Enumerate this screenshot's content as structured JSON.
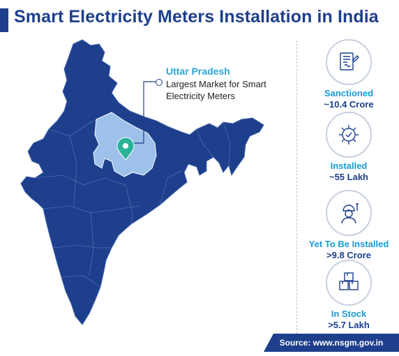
{
  "title": "Smart Electricity Meters Installation in India",
  "callout": {
    "state": "Uttar Pradesh",
    "description": "Largest Market for Smart Electricity Meters"
  },
  "stats": [
    {
      "label": "Sanctioned",
      "value": "~10.4 Crore",
      "icon": "contract-document-icon"
    },
    {
      "label": "Installed",
      "value": "~55 Lakh",
      "icon": "gear-check-icon"
    },
    {
      "label": "Yet To Be Installed",
      "value": ">9.8 Crore",
      "icon": "technician-icon"
    },
    {
      "label": "In Stock",
      "value": ">5.7 Lakh",
      "icon": "stacked-boxes-icon"
    }
  ],
  "source": "Source: www.nsgm.gov.in",
  "colors": {
    "map_fill": "#1d3f8c",
    "highlight_fill": "#9dc1ea",
    "pin": "#2bb39a",
    "accent_label": "#1a9ad6"
  }
}
